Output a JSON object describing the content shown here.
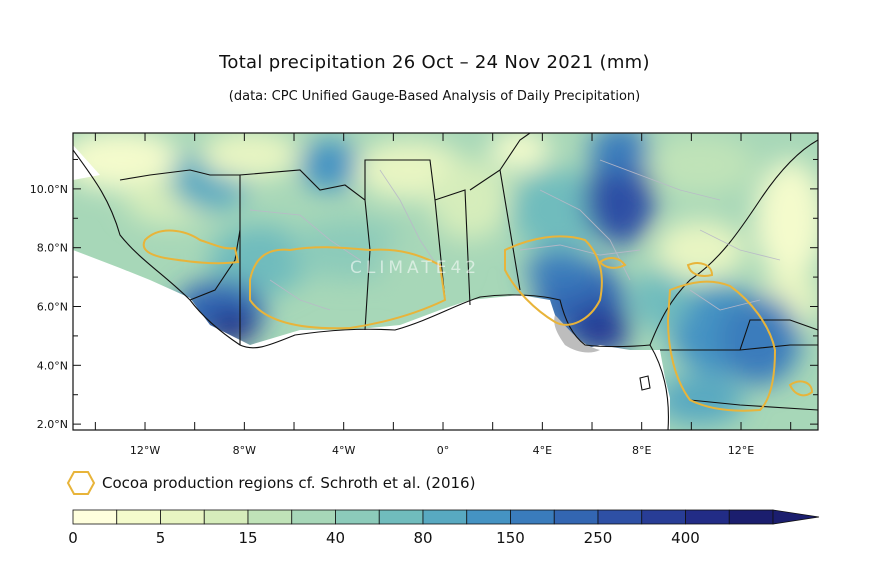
{
  "title": "Total precipitation 26 Oct – 24 Nov 2021 (mm)",
  "subtitle": "(data: CPC Unified Gauge-Based Analysis of Daily Precipitation)",
  "watermark": "CLIMATE42",
  "map": {
    "y_ticks": [
      "10.0°N",
      "8.0°N",
      "6.0°N",
      "4.0°N",
      "2.0°N"
    ],
    "x_ticks": [
      "12°W",
      "8°W",
      "4°W",
      "0°",
      "4°E",
      "8°E",
      "12°E"
    ],
    "lat_range": [
      1.8,
      11.9
    ],
    "lon_range": [
      -14.9,
      15.1
    ]
  },
  "legend": {
    "cocoa_label": "Cocoa production regions cf. Schroth et al. (2016)",
    "cocoa_color": "#e8b43a"
  },
  "colorbar": {
    "labels": [
      "0",
      "5",
      "15",
      "40",
      "80",
      "150",
      "250",
      "400"
    ],
    "colors": [
      "#ffffdd",
      "#f4fbcc",
      "#e8f5c2",
      "#d6edbb",
      "#c0e3b8",
      "#a7d7b8",
      "#8ccbba",
      "#70bcbd",
      "#58a9c1",
      "#4593c3",
      "#3a7cbc",
      "#3366b2",
      "#2e50a5",
      "#283d96",
      "#222c86",
      "#1b1e6e"
    ]
  }
}
